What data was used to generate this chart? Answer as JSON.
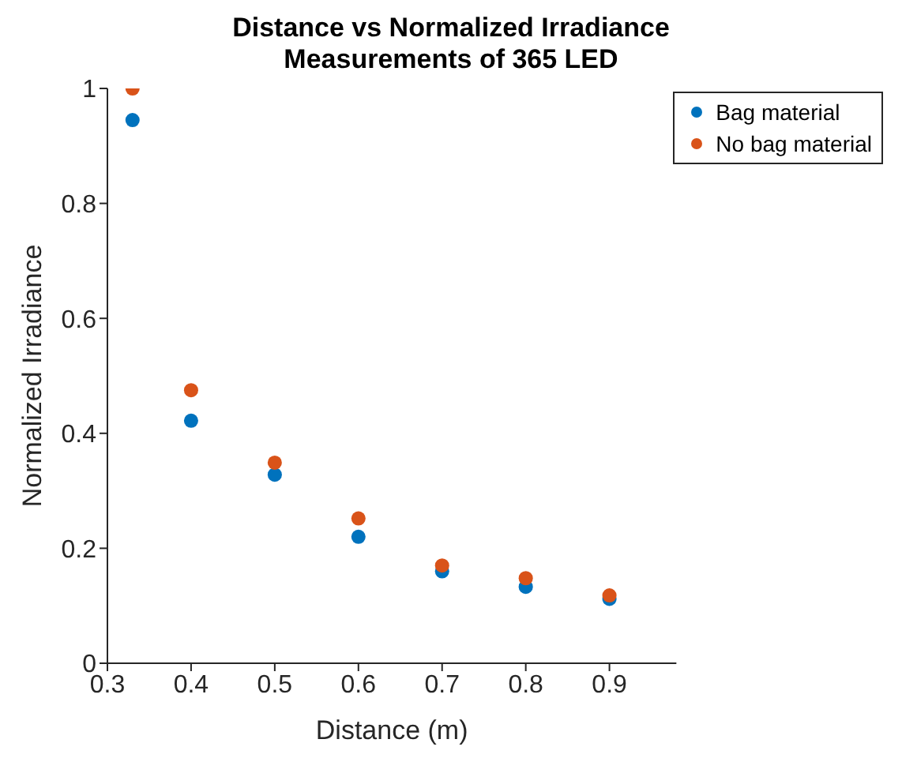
{
  "chart_data": {
    "type": "scatter",
    "title": "Distance vs Normalized Irradiance\nMeasurements of 365 LED",
    "xlabel": "Distance (m)",
    "ylabel": "Normalized Irradiance",
    "x": [
      0.33,
      0.4,
      0.5,
      0.6,
      0.7,
      0.8,
      0.9
    ],
    "series": [
      {
        "name": "Bag material",
        "color": "#0072bd",
        "values": [
          0.945,
          0.422,
          0.328,
          0.22,
          0.16,
          0.133,
          0.112
        ]
      },
      {
        "name": "No bag material",
        "color": "#d95319",
        "values": [
          1.0,
          0.475,
          0.349,
          0.252,
          0.17,
          0.148,
          0.118
        ]
      }
    ],
    "xlim": [
      0.3,
      0.98
    ],
    "xticks": [
      0.3,
      0.4,
      0.5,
      0.6,
      0.7,
      0.8,
      0.9
    ],
    "ylim": [
      0,
      1
    ],
    "yticks": [
      0,
      0.2,
      0.4,
      0.6,
      0.8,
      1
    ],
    "grid": false,
    "legend": "top right",
    "marker": "circle"
  }
}
